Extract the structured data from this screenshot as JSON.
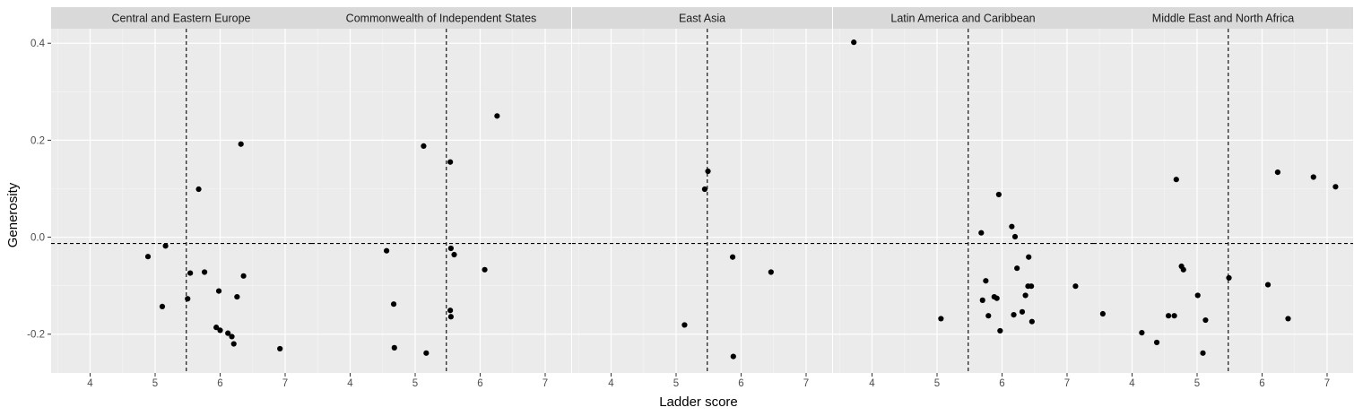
{
  "chart_data": {
    "type": "scatter",
    "xlabel": "Ladder score",
    "ylabel": "Generosity",
    "xlim": [
      3.4,
      7.4
    ],
    "ylim": [
      -0.28,
      0.43
    ],
    "x_ticks": [
      4,
      5,
      6,
      7
    ],
    "y_ticks": [
      -0.2,
      0.0,
      0.2,
      0.4
    ],
    "x_tick_labels": [
      "4",
      "5",
      "6",
      "7"
    ],
    "y_tick_labels": [
      "-0.2",
      "0.0",
      "0.2",
      "0.4"
    ],
    "reference_lines": {
      "x": 5.48,
      "y": -0.013,
      "style": "dashed"
    },
    "grid": true,
    "panels": [
      {
        "title": "Central and Eastern Europe",
        "points": [
          [
            4.89,
            -0.04
          ],
          [
            5.11,
            -0.143
          ],
          [
            5.16,
            -0.018
          ],
          [
            5.5,
            -0.127
          ],
          [
            5.54,
            -0.074
          ],
          [
            5.67,
            0.099
          ],
          [
            5.76,
            -0.072
          ],
          [
            5.94,
            -0.186
          ],
          [
            5.98,
            -0.111
          ],
          [
            6.0,
            -0.192
          ],
          [
            6.12,
            -0.198
          ],
          [
            6.18,
            -0.205
          ],
          [
            6.21,
            -0.22
          ],
          [
            6.26,
            -0.123
          ],
          [
            6.32,
            0.192
          ],
          [
            6.36,
            -0.08
          ],
          [
            6.92,
            -0.23
          ]
        ]
      },
      {
        "title": "Commonwealth of Independent States",
        "points": [
          [
            4.56,
            -0.028
          ],
          [
            4.67,
            -0.138
          ],
          [
            4.68,
            -0.228
          ],
          [
            5.13,
            0.188
          ],
          [
            5.17,
            -0.239
          ],
          [
            5.54,
            0.155
          ],
          [
            5.55,
            -0.023
          ],
          [
            5.54,
            -0.151
          ],
          [
            5.55,
            -0.164
          ],
          [
            5.6,
            -0.036
          ],
          [
            6.07,
            -0.067
          ],
          [
            6.26,
            0.25
          ]
        ]
      },
      {
        "title": "East Asia",
        "points": [
          [
            5.13,
            -0.181
          ],
          [
            5.44,
            0.099
          ],
          [
            5.49,
            0.136
          ],
          [
            5.87,
            -0.041
          ],
          [
            5.88,
            -0.246
          ],
          [
            6.46,
            -0.072
          ]
        ]
      },
      {
        "title": "Latin America and Caribbean",
        "points": [
          [
            3.72,
            0.402
          ],
          [
            5.06,
            -0.168
          ],
          [
            5.68,
            0.009
          ],
          [
            5.7,
            -0.13
          ],
          [
            5.75,
            -0.09
          ],
          [
            5.79,
            -0.162
          ],
          [
            5.88,
            -0.123
          ],
          [
            5.92,
            -0.126
          ],
          [
            5.95,
            0.088
          ],
          [
            5.97,
            -0.193
          ],
          [
            6.15,
            0.022
          ],
          [
            6.18,
            -0.16
          ],
          [
            6.2,
            0.001
          ],
          [
            6.23,
            -0.064
          ],
          [
            6.31,
            -0.154
          ],
          [
            6.36,
            -0.12
          ],
          [
            6.4,
            -0.101
          ],
          [
            6.41,
            -0.041
          ],
          [
            6.45,
            -0.101
          ],
          [
            6.46,
            -0.174
          ],
          [
            7.13,
            -0.101
          ]
        ]
      },
      {
        "title": "Middle East and North Africa",
        "points": [
          [
            3.55,
            -0.158
          ],
          [
            4.15,
            -0.197
          ],
          [
            4.38,
            -0.217
          ],
          [
            4.56,
            -0.162
          ],
          [
            4.65,
            -0.162
          ],
          [
            4.68,
            0.119
          ],
          [
            4.76,
            -0.06
          ],
          [
            4.79,
            -0.067
          ],
          [
            5.01,
            -0.12
          ],
          [
            5.09,
            -0.239
          ],
          [
            5.13,
            -0.171
          ],
          [
            5.49,
            -0.084
          ],
          [
            6.09,
            -0.098
          ],
          [
            6.24,
            0.134
          ],
          [
            6.4,
            -0.168
          ],
          [
            6.79,
            0.124
          ],
          [
            7.13,
            0.104
          ]
        ]
      }
    ]
  }
}
